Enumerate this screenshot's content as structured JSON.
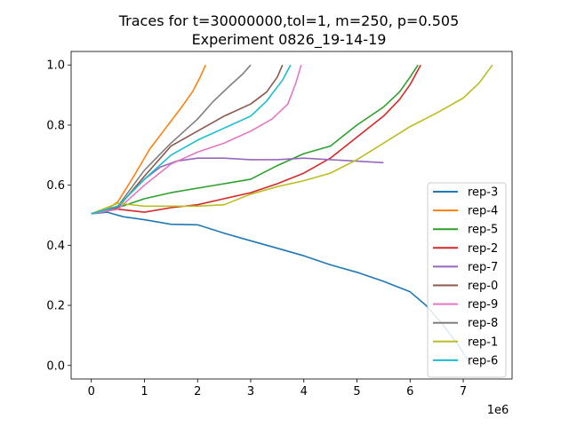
{
  "figure": {
    "title_line1": "Traces for t=30000000,tol=1, m=250, p=0.505",
    "title_line2": "Experiment 0826_19-14-19",
    "x_offset_label": "1e6"
  },
  "chart_data": {
    "type": "line",
    "title": "Traces for t=30000000,tol=1, m=250, p=0.505\nExperiment 0826_19-14-19",
    "xlabel": "",
    "ylabel": "",
    "x_scale_note": "1e6",
    "xlim": [
      -0.38,
      7.92
    ],
    "ylim": [
      -0.045,
      1.045
    ],
    "xticks": [
      0,
      1,
      2,
      3,
      4,
      5,
      6,
      7
    ],
    "yticks": [
      0.0,
      0.2,
      0.4,
      0.6,
      0.8,
      1.0
    ],
    "ytick_labels": [
      "0.0",
      "0.2",
      "0.4",
      "0.6",
      "0.8",
      "1.0"
    ],
    "grid": false,
    "legend_position": "lower-right",
    "series": [
      {
        "name": "rep-3",
        "color": "#1f77b4",
        "x": [
          0,
          0.3,
          0.6,
          1.0,
          1.5,
          2.0,
          2.5,
          3.0,
          3.5,
          4.0,
          4.5,
          5.0,
          5.5,
          6.0,
          6.3,
          6.6,
          6.9,
          7.15
        ],
        "y": [
          0.505,
          0.51,
          0.495,
          0.485,
          0.47,
          0.468,
          0.44,
          0.415,
          0.39,
          0.365,
          0.335,
          0.31,
          0.28,
          0.245,
          0.2,
          0.14,
          0.07,
          0.0
        ]
      },
      {
        "name": "rep-4",
        "color": "#ff7f0e",
        "x": [
          0,
          0.3,
          0.5,
          0.8,
          1.1,
          1.4,
          1.7,
          1.9,
          2.05,
          2.15
        ],
        "y": [
          0.505,
          0.52,
          0.545,
          0.63,
          0.72,
          0.79,
          0.86,
          0.91,
          0.96,
          1.0
        ]
      },
      {
        "name": "rep-5",
        "color": "#2ca02c",
        "x": [
          0,
          0.5,
          1.0,
          1.5,
          2.0,
          2.5,
          3.0,
          3.5,
          4.0,
          4.5,
          5.0,
          5.5,
          5.8,
          6.0,
          6.15
        ],
        "y": [
          0.505,
          0.525,
          0.555,
          0.575,
          0.59,
          0.605,
          0.62,
          0.665,
          0.705,
          0.73,
          0.8,
          0.86,
          0.91,
          0.96,
          1.0
        ]
      },
      {
        "name": "rep-2",
        "color": "#d62728",
        "x": [
          0,
          0.5,
          1.0,
          1.5,
          2.0,
          2.5,
          3.0,
          3.5,
          4.0,
          4.5,
          5.0,
          5.5,
          5.8,
          6.0,
          6.2
        ],
        "y": [
          0.505,
          0.52,
          0.51,
          0.525,
          0.535,
          0.555,
          0.575,
          0.605,
          0.64,
          0.69,
          0.76,
          0.83,
          0.885,
          0.935,
          1.0
        ]
      },
      {
        "name": "rep-7",
        "color": "#9467bd",
        "x": [
          0,
          0.5,
          1.0,
          1.3,
          1.6,
          2.0,
          2.5,
          3.0,
          3.5,
          4.0,
          4.5,
          5.0,
          5.5
        ],
        "y": [
          0.505,
          0.53,
          0.62,
          0.66,
          0.68,
          0.69,
          0.69,
          0.685,
          0.685,
          0.69,
          0.685,
          0.68,
          0.675
        ]
      },
      {
        "name": "rep-0",
        "color": "#8c564b",
        "x": [
          0,
          0.5,
          1.0,
          1.5,
          2.0,
          2.5,
          3.0,
          3.3,
          3.5,
          3.6
        ],
        "y": [
          0.505,
          0.525,
          0.63,
          0.73,
          0.78,
          0.83,
          0.87,
          0.91,
          0.96,
          1.0
        ]
      },
      {
        "name": "rep-9",
        "color": "#e377c2",
        "x": [
          0,
          0.5,
          1.0,
          1.5,
          2.0,
          2.5,
          3.0,
          3.4,
          3.7,
          3.85,
          3.95
        ],
        "y": [
          0.505,
          0.52,
          0.6,
          0.67,
          0.71,
          0.74,
          0.78,
          0.82,
          0.87,
          0.94,
          1.0
        ]
      },
      {
        "name": "rep-8",
        "color": "#7f7f7f",
        "x": [
          0,
          0.5,
          1.0,
          1.5,
          2.0,
          2.3,
          2.6,
          2.85,
          3.0
        ],
        "y": [
          0.505,
          0.53,
          0.65,
          0.74,
          0.82,
          0.88,
          0.93,
          0.97,
          1.0
        ]
      },
      {
        "name": "rep-1",
        "color": "#bcbd22",
        "x": [
          0,
          0.5,
          1.0,
          1.5,
          2.0,
          2.5,
          3.0,
          3.5,
          4.0,
          4.5,
          5.0,
          5.5,
          6.0,
          6.5,
          7.0,
          7.3,
          7.55
        ],
        "y": [
          0.505,
          0.54,
          0.53,
          0.53,
          0.53,
          0.535,
          0.57,
          0.595,
          0.615,
          0.64,
          0.685,
          0.74,
          0.795,
          0.84,
          0.89,
          0.94,
          1.0
        ]
      },
      {
        "name": "rep-6",
        "color": "#17becf",
        "x": [
          0,
          0.5,
          1.0,
          1.5,
          2.0,
          2.5,
          3.0,
          3.3,
          3.6,
          3.75
        ],
        "y": [
          0.505,
          0.53,
          0.62,
          0.7,
          0.75,
          0.79,
          0.83,
          0.88,
          0.95,
          1.0
        ]
      }
    ]
  }
}
